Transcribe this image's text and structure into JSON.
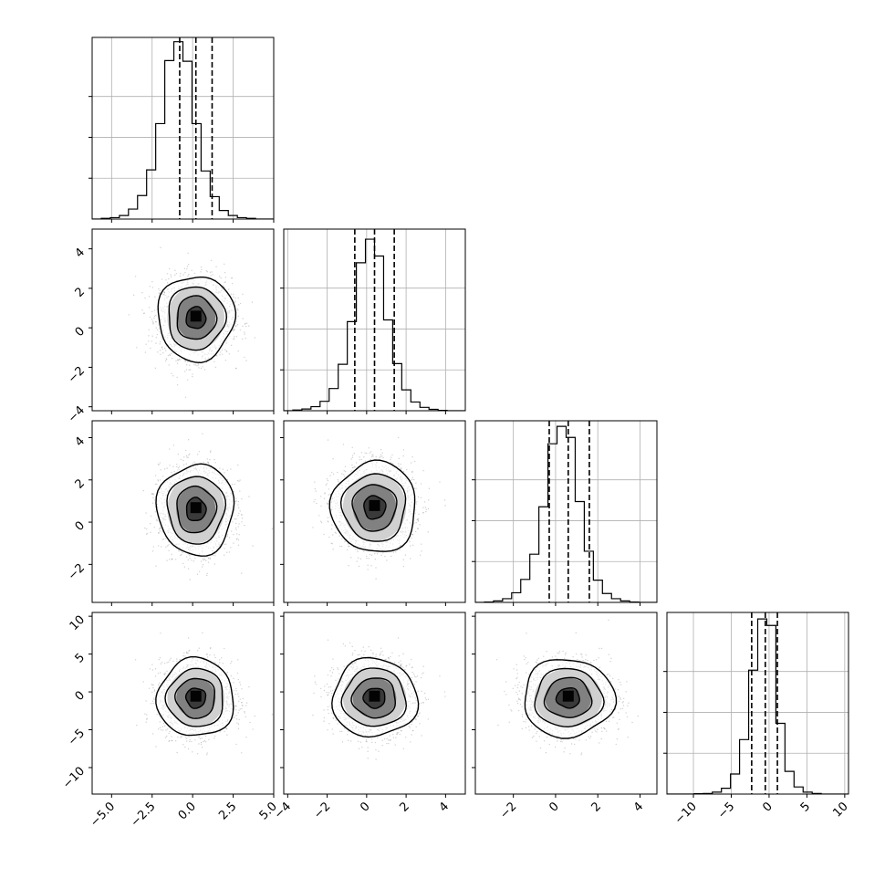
{
  "chart_data": {
    "type": "corner",
    "title": "",
    "n_params": 4,
    "quantile_lines": "dashed",
    "grid": true,
    "variables": [
      {
        "range": [
          -6.2,
          5.0
        ],
        "ticks": [
          -5.0,
          -2.5,
          0.0,
          2.5,
          5.0
        ],
        "tick_labels": [
          "−5.0",
          "−2.5",
          "0.0",
          "2.5",
          "5.0"
        ],
        "quantiles": [
          -0.8,
          0.2,
          1.2
        ],
        "hist_edges_start": -6.2,
        "hist_bin_width": 0.56,
        "hist_counts": [
          0,
          2,
          4,
          10,
          28,
          66,
          138,
          268,
          445,
          498,
          443,
          268,
          135,
          63,
          24,
          10,
          4,
          2,
          0,
          0
        ],
        "hist_ylim": [
          0,
          510
        ]
      },
      {
        "range": [
          -4.2,
          5.0
        ],
        "ticks": [
          -4,
          -2,
          0,
          2,
          4
        ],
        "tick_labels": [
          "−4",
          "−2",
          "0",
          "2",
          "4"
        ],
        "quantiles": [
          -0.6,
          0.4,
          1.4
        ],
        "hist_edges_start": -4.2,
        "hist_bin_width": 0.46,
        "hist_counts": [
          0,
          2,
          5,
          12,
          28,
          66,
          138,
          265,
          440,
          510,
          460,
          270,
          140,
          62,
          26,
          10,
          4,
          1,
          0,
          0
        ],
        "hist_ylim": [
          0,
          540
        ]
      },
      {
        "range": [
          -3.8,
          4.8
        ],
        "ticks": [
          -2,
          0,
          2,
          4
        ],
        "tick_labels": [
          "−2",
          "0",
          "2",
          "4"
        ],
        "quantiles": [
          -0.3,
          0.6,
          1.6
        ],
        "hist_edges_start": -3.8,
        "hist_bin_width": 0.43,
        "hist_counts": [
          0,
          1,
          4,
          10,
          26,
          62,
          130,
          258,
          428,
          475,
          445,
          272,
          138,
          60,
          24,
          10,
          4,
          1,
          0,
          0
        ],
        "hist_ylim": [
          0,
          490
        ]
      },
      {
        "range": [
          -13.5,
          10.5
        ],
        "ticks": [
          -10,
          -5,
          0,
          5,
          10
        ],
        "tick_labels": [
          "−10",
          "−5",
          "0",
          "5",
          "10"
        ],
        "quantiles": [
          -2.3,
          -0.5,
          1.1
        ],
        "hist_edges_start": -13.5,
        "hist_bin_width": 1.2,
        "hist_counts": [
          0,
          0,
          0,
          1,
          2,
          6,
          18,
          62,
          168,
          382,
          540,
          520,
          218,
          70,
          22,
          6,
          2,
          0,
          0,
          0
        ],
        "hist_ylim": [
          0,
          560
        ]
      }
    ],
    "pairs": [
      {
        "row": 1,
        "col": 0,
        "center": [
          0.2,
          0.5
        ],
        "spread": [
          1.1,
          1.0
        ],
        "contours": [
          0.55,
          1.1,
          1.6,
          2.15
        ],
        "density_levels": [
          0.55,
          1.1,
          1.6
        ]
      },
      {
        "row": 2,
        "col": 0,
        "center": [
          0.2,
          0.6
        ],
        "spread": [
          1.1,
          1.0
        ],
        "contours": [
          0.55,
          1.1,
          1.6,
          2.15
        ],
        "density_levels": [
          0.55,
          1.1,
          1.6
        ]
      },
      {
        "row": 2,
        "col": 1,
        "center": [
          0.4,
          0.7
        ],
        "spread": [
          1.0,
          1.0
        ],
        "contours": [
          0.55,
          1.1,
          1.6,
          2.15
        ],
        "density_levels": [
          0.55,
          1.1,
          1.6
        ]
      },
      {
        "row": 3,
        "col": 0,
        "center": [
          0.2,
          -0.8
        ],
        "spread": [
          1.1,
          2.4
        ],
        "contours": [
          0.55,
          1.1,
          1.6,
          2.15
        ],
        "density_levels": [
          0.55,
          1.1,
          1.6
        ]
      },
      {
        "row": 3,
        "col": 1,
        "center": [
          0.4,
          -0.8
        ],
        "spread": [
          1.0,
          2.4
        ],
        "contours": [
          0.55,
          1.1,
          1.6,
          2.15
        ],
        "density_levels": [
          0.55,
          1.1,
          1.6
        ]
      },
      {
        "row": 3,
        "col": 2,
        "center": [
          0.6,
          -0.8
        ],
        "spread": [
          1.0,
          2.4
        ],
        "contours": [
          0.55,
          1.1,
          1.6,
          2.15
        ],
        "density_levels": [
          0.55,
          1.1,
          1.6
        ]
      }
    ],
    "colors": {
      "axes": "#000000",
      "grid": "#b0b0b0",
      "points": "#9a9a9a",
      "density": "#000000"
    }
  }
}
